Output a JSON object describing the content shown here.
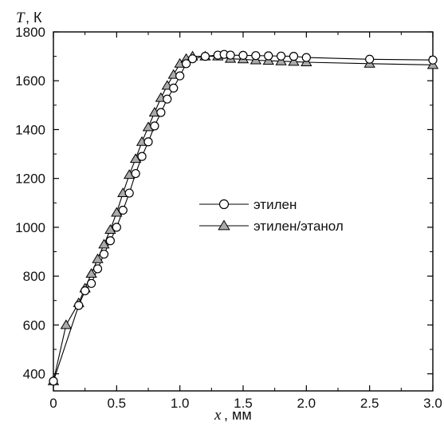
{
  "chart_data": {
    "type": "line",
    "ylabel_symbol": "T",
    "ylabel_unit": ", К",
    "xlabel_symbol": "x",
    "xlabel_unit": ", мм",
    "xlim": [
      0,
      3.0
    ],
    "ylim": [
      330,
      1800
    ],
    "x_ticks": [
      {
        "value": 0,
        "label": "0"
      },
      {
        "value": 0.5,
        "label": "0.5"
      },
      {
        "value": 1.0,
        "label": "1.0"
      },
      {
        "value": 1.5,
        "label": "1.5"
      },
      {
        "value": 2.0,
        "label": "2.0"
      },
      {
        "value": 2.5,
        "label": "2.5"
      },
      {
        "value": 3.0,
        "label": "3.0"
      }
    ],
    "y_ticks": [
      {
        "value": 400,
        "label": "400"
      },
      {
        "value": 600,
        "label": "600"
      },
      {
        "value": 800,
        "label": "800"
      },
      {
        "value": 1000,
        "label": "1000"
      },
      {
        "value": 1200,
        "label": "1200"
      },
      {
        "value": 1400,
        "label": "1400"
      },
      {
        "value": 1600,
        "label": "1600"
      },
      {
        "value": 1800,
        "label": "1800"
      }
    ],
    "grid": false,
    "legend_position": "center-right",
    "series": [
      {
        "name": "этилен",
        "marker": "circle",
        "color": "#000000",
        "x": [
          0,
          0.2,
          0.25,
          0.3,
          0.35,
          0.4,
          0.45,
          0.5,
          0.55,
          0.6,
          0.65,
          0.7,
          0.75,
          0.8,
          0.85,
          0.9,
          0.95,
          1.0,
          1.05,
          1.1,
          1.2,
          1.3,
          1.35,
          1.4,
          1.5,
          1.6,
          1.7,
          1.8,
          1.9,
          2.0,
          2.5,
          3.0
        ],
        "y": [
          370,
          680,
          740,
          770,
          830,
          890,
          945,
          1000,
          1070,
          1140,
          1220,
          1290,
          1350,
          1415,
          1470,
          1525,
          1570,
          1620,
          1670,
          1690,
          1700,
          1705,
          1708,
          1705,
          1704,
          1703,
          1702,
          1701,
          1700,
          1695,
          1688,
          1685
        ]
      },
      {
        "name": "этилен/этанол",
        "marker": "triangle",
        "color": "#000000",
        "fill": "#aaaaaa",
        "x": [
          0,
          0.1,
          0.2,
          0.25,
          0.3,
          0.35,
          0.4,
          0.45,
          0.5,
          0.55,
          0.6,
          0.65,
          0.7,
          0.75,
          0.8,
          0.85,
          0.9,
          0.95,
          1.0,
          1.05,
          1.1,
          1.2,
          1.3,
          1.4,
          1.5,
          1.6,
          1.7,
          1.8,
          1.9,
          2.0,
          2.5,
          3.0
        ],
        "y": [
          370,
          600,
          690,
          750,
          810,
          870,
          930,
          990,
          1060,
          1140,
          1215,
          1280,
          1350,
          1410,
          1470,
          1530,
          1580,
          1625,
          1670,
          1690,
          1700,
          1700,
          1700,
          1690,
          1688,
          1684,
          1682,
          1680,
          1678,
          1676,
          1670,
          1665
        ]
      }
    ]
  }
}
